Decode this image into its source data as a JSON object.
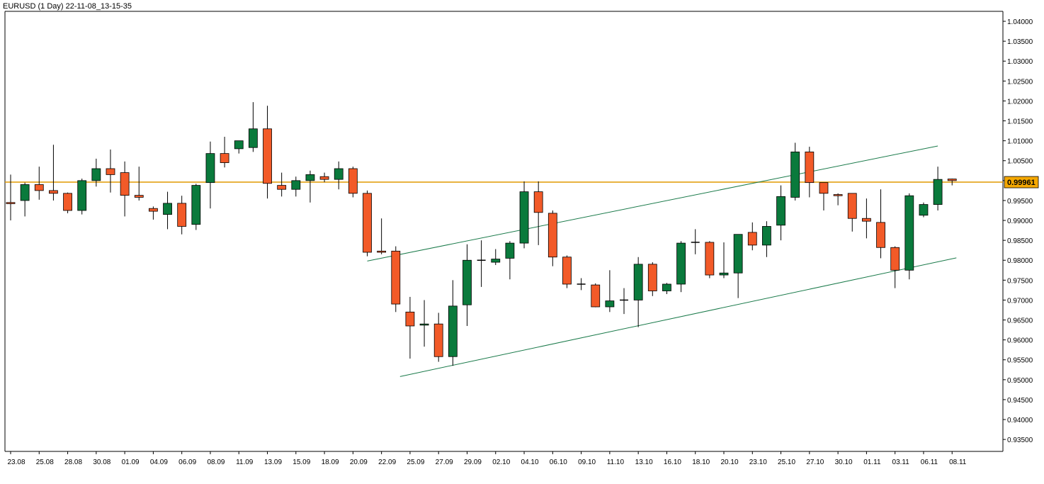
{
  "chart_data": {
    "type": "candlestick",
    "title": "EURUSD (1 Day) 22-11-08_13-15-35",
    "current_price_label": "0.99961",
    "colors": {
      "bull": "#0a7a3c",
      "bear": "#f25a28",
      "candle_outline": "#000000",
      "price_line": "#e09a00",
      "price_tag": "#f5a800",
      "channel": "#1a7a4a",
      "axis": "#000000",
      "background": "#ffffff"
    },
    "x_tick_labels": [
      "23.08",
      "25.08",
      "28.08",
      "30.08",
      "01.09",
      "04.09",
      "06.09",
      "08.09",
      "11.09",
      "13.09",
      "15.09",
      "18.09",
      "20.09",
      "22.09",
      "25.09",
      "27.09",
      "29.09",
      "02.10",
      "04.10",
      "06.10",
      "09.10",
      "11.10",
      "13.10",
      "16.10",
      "18.10",
      "20.10",
      "23.10",
      "25.10",
      "27.10",
      "30.10",
      "01.11",
      "03.11",
      "06.11",
      "08.11"
    ],
    "y_tick_labels": [
      "0.93500",
      "0.94000",
      "0.94500",
      "0.95000",
      "0.95500",
      "0.96000",
      "0.96500",
      "0.97000",
      "0.97500",
      "0.98000",
      "0.98500",
      "0.99000",
      "0.99500",
      "1.00000",
      "1.00500",
      "1.01000",
      "1.01500",
      "1.02000",
      "1.02500",
      "1.03000",
      "1.03500",
      "1.04000"
    ],
    "y_ticks": [
      0.935,
      0.94,
      0.945,
      0.95,
      0.955,
      0.96,
      0.965,
      0.97,
      0.975,
      0.98,
      0.985,
      0.99,
      0.995,
      1.0,
      1.005,
      1.01,
      1.015,
      1.02,
      1.025,
      1.03,
      1.035,
      1.04
    ],
    "ylim": [
      0.932,
      1.0425
    ],
    "price_line": 0.99961,
    "candles": [
      {
        "o": 0.9945,
        "h": 1.0015,
        "l": 0.99,
        "c": 0.9942
      },
      {
        "o": 0.995,
        "h": 0.9995,
        "l": 0.991,
        "c": 0.999
      },
      {
        "o": 0.999,
        "h": 1.0035,
        "l": 0.9952,
        "c": 0.9975
      },
      {
        "o": 0.9975,
        "h": 1.009,
        "l": 0.995,
        "c": 0.9968
      },
      {
        "o": 0.9968,
        "h": 0.997,
        "l": 0.9918,
        "c": 0.9925
      },
      {
        "o": 0.9925,
        "h": 1.0005,
        "l": 0.9915,
        "c": 1.0
      },
      {
        "o": 1.0,
        "h": 1.0055,
        "l": 0.9985,
        "c": 1.003
      },
      {
        "o": 1.003,
        "h": 1.0078,
        "l": 0.997,
        "c": 1.0015
      },
      {
        "o": 1.002,
        "h": 1.0048,
        "l": 0.991,
        "c": 0.9963
      },
      {
        "o": 0.9963,
        "h": 1.0035,
        "l": 0.995,
        "c": 0.9958
      },
      {
        "o": 0.993,
        "h": 0.9935,
        "l": 0.9902,
        "c": 0.9923
      },
      {
        "o": 0.9915,
        "h": 0.9972,
        "l": 0.9878,
        "c": 0.9943
      },
      {
        "o": 0.9943,
        "h": 0.9962,
        "l": 0.9865,
        "c": 0.9885
      },
      {
        "o": 0.989,
        "h": 0.9992,
        "l": 0.9876,
        "c": 0.9988
      },
      {
        "o": 0.9995,
        "h": 1.0098,
        "l": 0.993,
        "c": 1.0068
      },
      {
        "o": 1.0068,
        "h": 1.011,
        "l": 1.0033,
        "c": 1.0045
      },
      {
        "o": 1.008,
        "h": 1.01,
        "l": 1.0068,
        "c": 1.01
      },
      {
        "o": 1.0083,
        "h": 1.0197,
        "l": 1.0072,
        "c": 1.013
      },
      {
        "o": 1.013,
        "h": 1.0188,
        "l": 0.9955,
        "c": 0.9993
      },
      {
        "o": 0.9988,
        "h": 1.002,
        "l": 0.996,
        "c": 0.9978
      },
      {
        "o": 0.9978,
        "h": 1.001,
        "l": 0.996,
        "c": 1.0
      },
      {
        "o": 1.0,
        "h": 1.0025,
        "l": 0.9945,
        "c": 1.0015
      },
      {
        "o": 1.001,
        "h": 1.002,
        "l": 0.9996,
        "c": 1.0003
      },
      {
        "o": 1.0003,
        "h": 1.0048,
        "l": 0.9978,
        "c": 1.003
      },
      {
        "o": 1.003,
        "h": 1.0035,
        "l": 0.9958,
        "c": 0.9968
      },
      {
        "o": 0.9968,
        "h": 0.9975,
        "l": 0.981,
        "c": 0.982
      },
      {
        "o": 0.9823,
        "h": 0.9905,
        "l": 0.9815,
        "c": 0.982
      },
      {
        "o": 0.9823,
        "h": 0.9835,
        "l": 0.967,
        "c": 0.969
      },
      {
        "o": 0.967,
        "h": 0.9708,
        "l": 0.9553,
        "c": 0.9635
      },
      {
        "o": 0.9637,
        "h": 0.97,
        "l": 0.9583,
        "c": 0.964
      },
      {
        "o": 0.964,
        "h": 0.9668,
        "l": 0.9545,
        "c": 0.9558
      },
      {
        "o": 0.9558,
        "h": 0.975,
        "l": 0.9535,
        "c": 0.9685
      },
      {
        "o": 0.9688,
        "h": 0.984,
        "l": 0.9635,
        "c": 0.98
      },
      {
        "o": 0.98,
        "h": 0.985,
        "l": 0.9733,
        "c": 0.98
      },
      {
        "o": 0.9795,
        "h": 0.9828,
        "l": 0.9788,
        "c": 0.9803
      },
      {
        "o": 0.9805,
        "h": 0.9848,
        "l": 0.9752,
        "c": 0.9843
      },
      {
        "o": 0.9843,
        "h": 0.9998,
        "l": 0.983,
        "c": 0.9972
      },
      {
        "o": 0.9972,
        "h": 0.9998,
        "l": 0.9838,
        "c": 0.992
      },
      {
        "o": 0.9918,
        "h": 0.9925,
        "l": 0.9785,
        "c": 0.9808
      },
      {
        "o": 0.9808,
        "h": 0.9812,
        "l": 0.973,
        "c": 0.974
      },
      {
        "o": 0.974,
        "h": 0.9755,
        "l": 0.9725,
        "c": 0.974
      },
      {
        "o": 0.9738,
        "h": 0.9742,
        "l": 0.9682,
        "c": 0.9683
      },
      {
        "o": 0.9683,
        "h": 0.9775,
        "l": 0.967,
        "c": 0.9698
      },
      {
        "o": 0.97,
        "h": 0.973,
        "l": 0.9665,
        "c": 0.97
      },
      {
        "o": 0.97,
        "h": 0.9808,
        "l": 0.9632,
        "c": 0.979
      },
      {
        "o": 0.979,
        "h": 0.9795,
        "l": 0.971,
        "c": 0.9723
      },
      {
        "o": 0.9723,
        "h": 0.9743,
        "l": 0.9715,
        "c": 0.974
      },
      {
        "o": 0.974,
        "h": 0.9848,
        "l": 0.972,
        "c": 0.9843
      },
      {
        "o": 0.9845,
        "h": 0.9878,
        "l": 0.9815,
        "c": 0.9845
      },
      {
        "o": 0.9845,
        "h": 0.9848,
        "l": 0.9755,
        "c": 0.9763
      },
      {
        "o": 0.9763,
        "h": 0.9845,
        "l": 0.9755,
        "c": 0.9768
      },
      {
        "o": 0.9768,
        "h": 0.9865,
        "l": 0.9705,
        "c": 0.9865
      },
      {
        "o": 0.987,
        "h": 0.9895,
        "l": 0.9825,
        "c": 0.9838
      },
      {
        "o": 0.9838,
        "h": 0.9898,
        "l": 0.9808,
        "c": 0.9885
      },
      {
        "o": 0.9888,
        "h": 0.9988,
        "l": 0.985,
        "c": 0.996
      },
      {
        "o": 0.9958,
        "h": 1.0095,
        "l": 0.995,
        "c": 1.0072
      },
      {
        "o": 1.0072,
        "h": 1.0085,
        "l": 0.9958,
        "c": 0.9995
      },
      {
        "o": 0.9995,
        "h": 0.9995,
        "l": 0.9925,
        "c": 0.9968
      },
      {
        "o": 0.9965,
        "h": 0.9968,
        "l": 0.9938,
        "c": 0.9962
      },
      {
        "o": 0.9968,
        "h": 0.9968,
        "l": 0.9872,
        "c": 0.9905
      },
      {
        "o": 0.9905,
        "h": 0.9955,
        "l": 0.9855,
        "c": 0.9898
      },
      {
        "o": 0.9895,
        "h": 0.9978,
        "l": 0.9805,
        "c": 0.9832
      },
      {
        "o": 0.9832,
        "h": 0.9835,
        "l": 0.973,
        "c": 0.9775
      },
      {
        "o": 0.9775,
        "h": 0.9968,
        "l": 0.9752,
        "c": 0.9962
      },
      {
        "o": 0.9913,
        "h": 0.9945,
        "l": 0.9908,
        "c": 0.994
      },
      {
        "o": 0.994,
        "h": 1.0035,
        "l": 0.9925,
        "c": 1.0003
      },
      {
        "o": 1.0004,
        "h": 1.0005,
        "l": 0.9988,
        "c": 1.0
      }
    ],
    "trendlines": [
      {
        "from": {
          "i": 25,
          "p": 0.9798
        },
        "to": {
          "i": 65,
          "p": 1.0087
        }
      },
      {
        "from": {
          "i": 27.3,
          "p": 0.9508
        },
        "to": {
          "i": 66.3,
          "p": 0.9806
        }
      }
    ]
  }
}
